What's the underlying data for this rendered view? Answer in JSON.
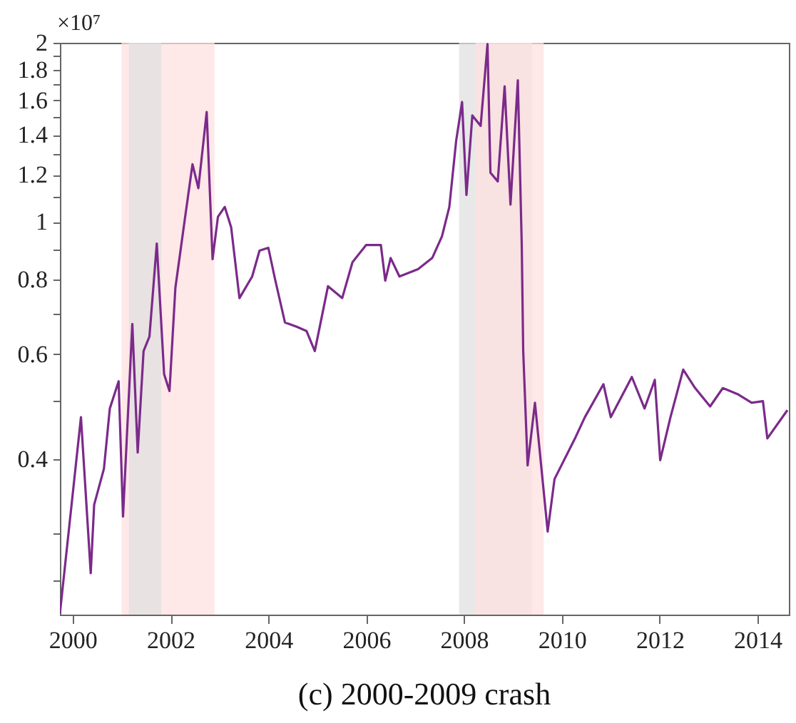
{
  "chart_data": {
    "type": "line",
    "title": "(c) 2000-2009 crash",
    "annotations": [
      "×10⁷"
    ],
    "xlim": [
      1999.74,
      2014.64
    ],
    "xticks": [
      2000,
      2002,
      2004,
      2006,
      2008,
      2010,
      2012,
      2014
    ],
    "ylim": [
      0.219,
      2.0
    ],
    "log": true,
    "grid": false,
    "marker": "none",
    "line_style": "solid",
    "yticks": [
      {
        "value": 0.25,
        "label": null
      },
      {
        "value": 0.3,
        "label": null
      },
      0.4,
      {
        "value": 0.5,
        "label": null
      },
      0.6,
      {
        "value": 0.7,
        "label": null
      },
      0.8,
      {
        "value": 0.9,
        "label": null
      },
      1,
      {
        "value": 1.1,
        "label": null
      },
      1.2,
      {
        "value": 1.3,
        "label": null
      },
      1.4,
      {
        "value": 1.5,
        "label": null
      },
      1.6,
      {
        "value": 1.7,
        "label": null
      },
      1.8,
      {
        "value": 1.9,
        "label": null
      },
      2
    ],
    "bands": [
      {
        "axis": "x",
        "from": 2001.0,
        "to": 2002.9,
        "color": "#ffe0e0"
      },
      {
        "axis": "x",
        "from": 2001.15,
        "to": 2001.81,
        "color": "#e0e0e0"
      },
      {
        "axis": "x",
        "from": 2007.9,
        "to": 2009.39,
        "color": "#e0e0e0"
      },
      {
        "axis": "x",
        "from": 2008.23,
        "to": 2009.63,
        "color": "#ffe0e0"
      }
    ],
    "series": [
      {
        "color": "#7b2a8a",
        "x": [
          1999.74,
          2000.17,
          2000.37,
          2000.44,
          2000.64,
          2000.76,
          2000.94,
          2001.03,
          2001.22,
          2001.33,
          2001.45,
          2001.57,
          2001.72,
          2001.87,
          2001.98,
          2002.1,
          2002.3,
          2002.45,
          2002.57,
          2002.74,
          2002.86,
          2002.97,
          2003.11,
          2003.24,
          2003.41,
          2003.67,
          2003.82,
          2004.0,
          2004.14,
          2004.34,
          2004.58,
          2004.78,
          2004.95,
          2005.22,
          2005.51,
          2005.72,
          2006.0,
          2006.3,
          2006.39,
          2006.5,
          2006.68,
          2007.06,
          2007.35,
          2007.55,
          2007.7,
          2007.84,
          2007.96,
          2008.05,
          2008.17,
          2008.34,
          2008.48,
          2008.54,
          2008.69,
          2008.83,
          2008.95,
          2009.1,
          2009.18,
          2009.21,
          2009.3,
          2009.45,
          2009.71,
          2009.85,
          2010.28,
          2010.47,
          2010.85,
          2011.0,
          2011.43,
          2011.69,
          2011.9,
          2012.01,
          2012.22,
          2012.48,
          2012.71,
          2013.03,
          2013.29,
          2013.59,
          2013.88,
          2014.11,
          2014.2,
          2014.61
        ],
        "values": [
          0.22,
          0.47,
          0.257,
          0.335,
          0.385,
          0.486,
          0.54,
          0.32,
          0.674,
          0.41,
          0.607,
          0.642,
          0.92,
          0.555,
          0.52,
          0.775,
          1.02,
          1.25,
          1.14,
          1.53,
          0.866,
          1.02,
          1.06,
          0.98,
          0.745,
          0.81,
          0.895,
          0.905,
          0.8,
          0.678,
          0.667,
          0.656,
          0.607,
          0.78,
          0.745,
          0.856,
          0.915,
          0.915,
          0.797,
          0.87,
          0.81,
          0.833,
          0.87,
          0.946,
          1.06,
          1.37,
          1.59,
          1.11,
          1.51,
          1.45,
          1.99,
          1.21,
          1.17,
          1.69,
          1.07,
          1.73,
          0.915,
          0.607,
          0.39,
          0.497,
          0.302,
          0.37,
          0.435,
          0.47,
          0.534,
          0.47,
          0.549,
          0.486,
          0.543,
          0.398,
          0.47,
          0.565,
          0.528,
          0.49,
          0.526,
          0.514,
          0.497,
          0.5,
          0.433,
          0.483
        ]
      }
    ]
  }
}
